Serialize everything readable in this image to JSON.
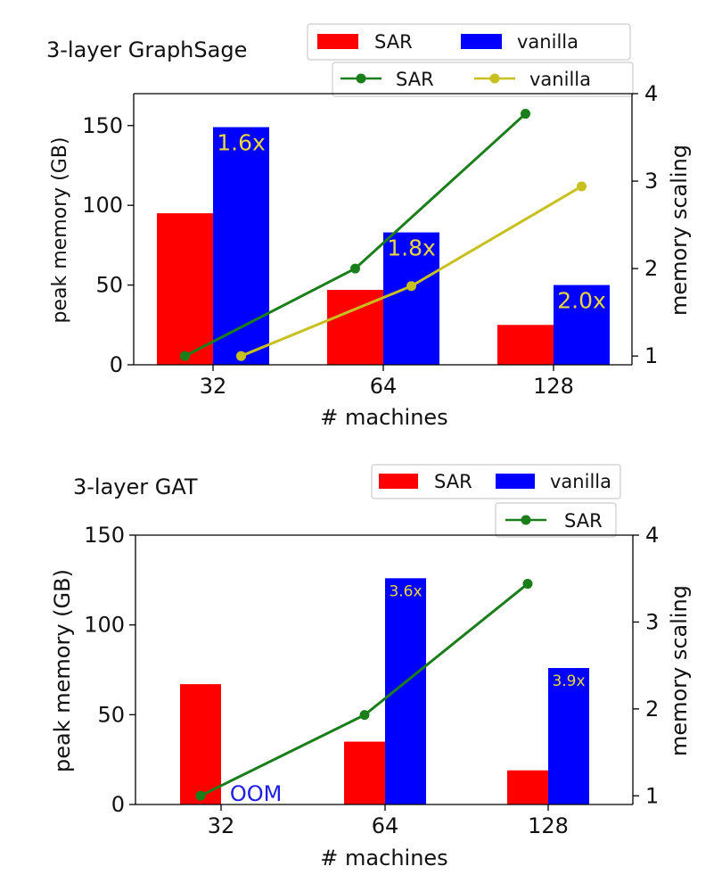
{
  "chart_data": [
    {
      "type": "bar",
      "title": "3-layer GraphSage",
      "xlabel": "# machines",
      "ylabel": "peak memory  (GB)",
      "y2label": "memory scaling",
      "categories": [
        "32",
        "64",
        "128"
      ],
      "ylim": [
        0,
        170
      ],
      "y2lim": [
        0.9,
        4.0
      ],
      "yticks": [
        "0",
        "50",
        "100",
        "150"
      ],
      "y2ticks": [
        "1",
        "2",
        "3",
        "4"
      ],
      "series": [
        {
          "name": "SAR",
          "color": "#ff0000",
          "values": [
            95,
            47,
            25
          ]
        },
        {
          "name": "vanilla",
          "color": "#0000ff",
          "values": [
            149,
            83,
            50
          ]
        }
      ],
      "bar_annotations": [
        "1.6x",
        "1.8x",
        "2.0x"
      ],
      "line_series": [
        {
          "name": "SAR",
          "color": "#1a7f1a",
          "values": [
            1.0,
            2.0,
            3.77
          ]
        },
        {
          "name": "vanilla",
          "color": "#c8c01e",
          "values": [
            1.0,
            1.8,
            2.94
          ]
        }
      ],
      "legend_bars": "top-right",
      "legend_lines": "top-right",
      "grid": false
    },
    {
      "type": "bar",
      "title": "3-layer GAT",
      "xlabel": "# machines",
      "ylabel": "peak memory (GB)",
      "y2label": "memory scaling",
      "categories": [
        "32",
        "64",
        "128"
      ],
      "ylim": [
        0,
        150
      ],
      "y2lim": [
        0.9,
        4.0
      ],
      "yticks": [
        "0",
        "50",
        "100",
        "150"
      ],
      "y2ticks": [
        "1",
        "2",
        "3",
        "4"
      ],
      "series": [
        {
          "name": "SAR",
          "color": "#ff0000",
          "values": [
            67,
            35,
            19
          ]
        },
        {
          "name": "vanilla",
          "color": "#0000ff",
          "values": [
            null,
            126,
            76
          ]
        }
      ],
      "bar_annotations": [
        "",
        "3.6x",
        "3.9x"
      ],
      "oom_label": "OOM",
      "line_series": [
        {
          "name": "SAR",
          "color": "#1a7f1a",
          "values": [
            1.0,
            1.93,
            3.44
          ]
        }
      ],
      "legend_bars": "top-right",
      "legend_lines": "top-right",
      "grid": false
    }
  ]
}
